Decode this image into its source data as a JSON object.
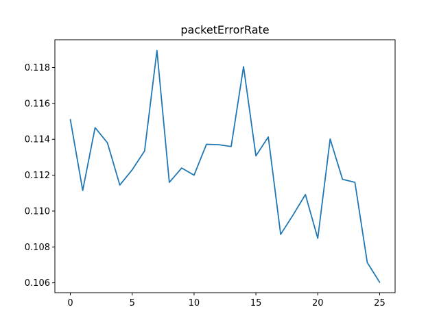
{
  "chart_data": {
    "type": "line",
    "title": "packetErrorRate",
    "xlabel": "",
    "ylabel": "",
    "xlim": [
      -1.25,
      26.25
    ],
    "ylim": [
      0.10545,
      0.11955
    ],
    "xticks": [
      0,
      5,
      10,
      15,
      20,
      25
    ],
    "xtick_labels": [
      "0",
      "5",
      "10",
      "15",
      "20",
      "25"
    ],
    "yticks": [
      0.106,
      0.108,
      0.11,
      0.112,
      0.114,
      0.116,
      0.118
    ],
    "ytick_labels": [
      "0.106",
      "0.108",
      "0.110",
      "0.112",
      "0.114",
      "0.116",
      "0.118"
    ],
    "grid": false,
    "legend": "none",
    "series": [
      {
        "color": "#1f77b4",
        "x": [
          0,
          1,
          2,
          3,
          4,
          5,
          6,
          7,
          8,
          9,
          10,
          11,
          12,
          13,
          14,
          15,
          16,
          17,
          18,
          19,
          20,
          21,
          22,
          23,
          24,
          25
        ],
        "y": [
          0.1151,
          0.11115,
          0.11465,
          0.1138,
          0.11145,
          0.1123,
          0.11335,
          0.11895,
          0.1116,
          0.1124,
          0.112,
          0.11372,
          0.1137,
          0.1136,
          0.11805,
          0.11308,
          0.11413,
          0.1087,
          0.10978,
          0.11092,
          0.10848,
          0.11402,
          0.11177,
          0.1116,
          0.10713,
          0.10603
        ]
      }
    ]
  }
}
